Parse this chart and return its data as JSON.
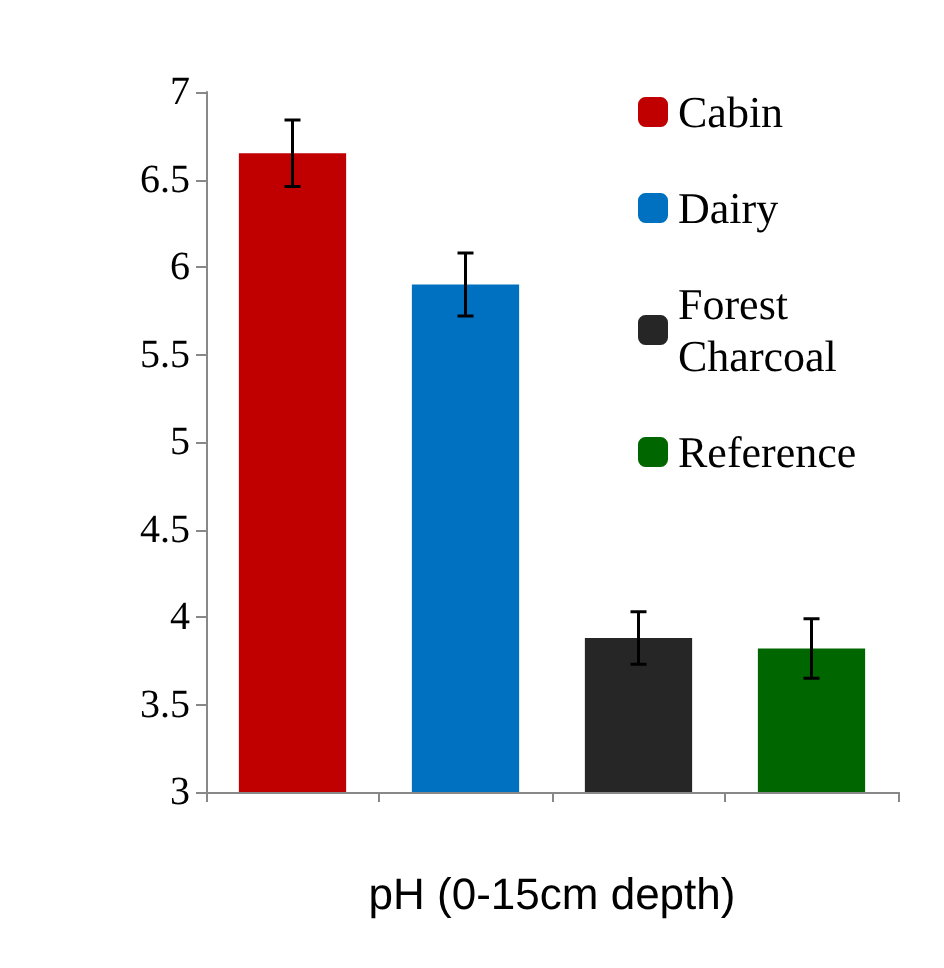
{
  "chart_data": {
    "type": "bar",
    "xlabel": "pH (0-15cm depth)",
    "categories": [
      null,
      null,
      null,
      null
    ],
    "series": [
      {
        "name": "Cabin",
        "color": "#c00000",
        "values": [
          6.65,
          null,
          null,
          null
        ],
        "errors": [
          0.19,
          null,
          null,
          null
        ]
      },
      {
        "name": "Dairy",
        "color": "#0070c0",
        "values": [
          null,
          5.9,
          null,
          null
        ],
        "errors": [
          null,
          0.18,
          null,
          null
        ]
      },
      {
        "name": "Forest Charcoal",
        "color": "#262626",
        "values": [
          null,
          null,
          3.88,
          null
        ],
        "errors": [
          null,
          null,
          0.15,
          null
        ]
      },
      {
        "name": "Reference",
        "color": "#006600",
        "values": [
          null,
          null,
          null,
          3.82
        ],
        "errors": [
          null,
          null,
          null,
          0.17
        ]
      }
    ],
    "ylim": [
      3,
      7
    ],
    "yticks": [
      3,
      3.5,
      4,
      4.5,
      5,
      5.5,
      6,
      6.5,
      7
    ],
    "grid": false,
    "legend": "top right"
  }
}
